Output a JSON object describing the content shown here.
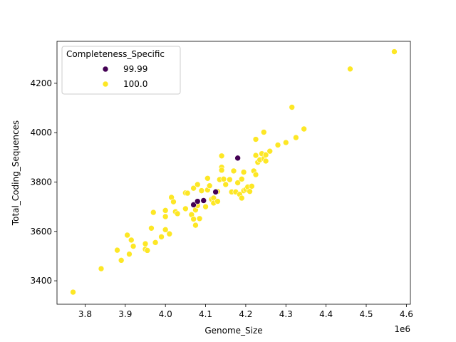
{
  "chart_data": {
    "type": "scatter",
    "xlabel": "Genome_Size",
    "ylabel": "Total_Coding_Sequences",
    "x_offset_label": "1e6",
    "xlim": [
      3.73,
      4.61
    ],
    "ylim": [
      3305,
      4370
    ],
    "x_ticks": [
      3.8,
      3.9,
      4.0,
      4.1,
      4.2,
      4.3,
      4.4,
      4.5,
      4.6
    ],
    "x_tick_labels": [
      "3.8",
      "3.9",
      "4.0",
      "4.1",
      "4.2",
      "4.3",
      "4.4",
      "4.5",
      "4.6"
    ],
    "y_ticks": [
      3400,
      3600,
      3800,
      4000,
      4200
    ],
    "y_tick_labels": [
      "3400",
      "3600",
      "3800",
      "4000",
      "4200"
    ],
    "grid": false,
    "legend": {
      "title": "Completeness_Specific",
      "placement": "top-left",
      "entries": [
        {
          "label": "99.99",
          "color": "#440154"
        },
        {
          "label": "100.0",
          "color": "#fde725"
        }
      ]
    },
    "series": [
      {
        "name": "99.99",
        "color": "#440154",
        "points": [
          [
            4.07,
            3708
          ],
          [
            4.08,
            3722
          ],
          [
            4.095,
            3725
          ],
          [
            4.125,
            3760
          ],
          [
            4.18,
            3897
          ]
        ]
      },
      {
        "name": "100.0",
        "color": "#fde725",
        "points": [
          [
            3.77,
            3354
          ],
          [
            3.84,
            3449
          ],
          [
            3.88,
            3524
          ],
          [
            3.89,
            3483
          ],
          [
            3.905,
            3585
          ],
          [
            3.91,
            3508
          ],
          [
            3.915,
            3565
          ],
          [
            3.92,
            3540
          ],
          [
            3.95,
            3528
          ],
          [
            3.95,
            3550
          ],
          [
            3.955,
            3523
          ],
          [
            3.965,
            3613
          ],
          [
            3.97,
            3677
          ],
          [
            3.975,
            3555
          ],
          [
            3.99,
            3578
          ],
          [
            4.0,
            3607
          ],
          [
            4.0,
            3685
          ],
          [
            4.0,
            3660
          ],
          [
            4.01,
            3590
          ],
          [
            4.015,
            3738
          ],
          [
            4.02,
            3720
          ],
          [
            4.025,
            3680
          ],
          [
            4.03,
            3672
          ],
          [
            4.05,
            3692
          ],
          [
            4.05,
            3756
          ],
          [
            4.055,
            3755
          ],
          [
            4.065,
            3668
          ],
          [
            4.07,
            3775
          ],
          [
            4.07,
            3650
          ],
          [
            4.075,
            3625
          ],
          [
            4.075,
            3687
          ],
          [
            4.08,
            3715
          ],
          [
            4.08,
            3705
          ],
          [
            4.08,
            3790
          ],
          [
            4.085,
            3652
          ],
          [
            4.09,
            3765
          ],
          [
            4.1,
            3700
          ],
          [
            4.105,
            3815
          ],
          [
            4.105,
            3768
          ],
          [
            4.11,
            3785
          ],
          [
            4.115,
            3730
          ],
          [
            4.12,
            3735
          ],
          [
            4.12,
            3715
          ],
          [
            4.13,
            3762
          ],
          [
            4.13,
            3722
          ],
          [
            4.135,
            3810
          ],
          [
            4.14,
            3860
          ],
          [
            4.14,
            3848
          ],
          [
            4.14,
            3906
          ],
          [
            4.145,
            3812
          ],
          [
            4.15,
            3790
          ],
          [
            4.16,
            3810
          ],
          [
            4.165,
            3760
          ],
          [
            4.17,
            3845
          ],
          [
            4.175,
            3760
          ],
          [
            4.18,
            3797
          ],
          [
            4.185,
            3750
          ],
          [
            4.19,
            3735
          ],
          [
            4.19,
            3812
          ],
          [
            4.195,
            3765
          ],
          [
            4.195,
            3840
          ],
          [
            4.2,
            3770
          ],
          [
            4.205,
            3780
          ],
          [
            4.21,
            3762
          ],
          [
            4.215,
            3783
          ],
          [
            4.22,
            3845
          ],
          [
            4.225,
            3830
          ],
          [
            4.225,
            3973
          ],
          [
            4.225,
            3908
          ],
          [
            4.23,
            3880
          ],
          [
            4.235,
            3890
          ],
          [
            4.24,
            3915
          ],
          [
            4.245,
            3895
          ],
          [
            4.245,
            4002
          ],
          [
            4.25,
            3885
          ],
          [
            4.25,
            3910
          ],
          [
            4.26,
            3925
          ],
          [
            4.28,
            3950
          ],
          [
            4.3,
            3960
          ],
          [
            4.315,
            4103
          ],
          [
            4.325,
            3980
          ],
          [
            4.345,
            4015
          ],
          [
            4.46,
            4258
          ],
          [
            4.57,
            4328
          ]
        ]
      }
    ]
  }
}
